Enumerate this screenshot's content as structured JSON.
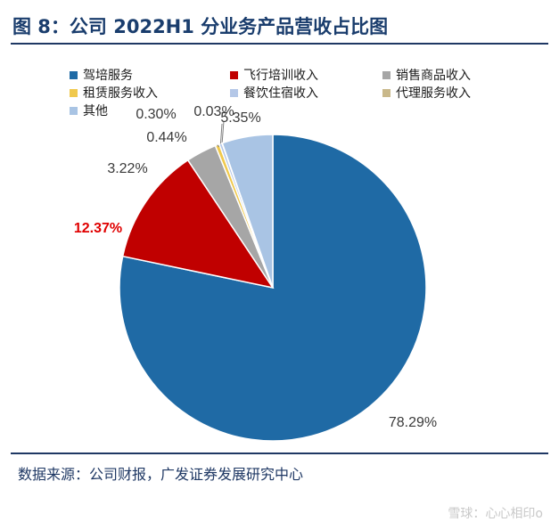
{
  "header": {
    "title": "图 8：公司 2022H1 分业务产品营收占比图"
  },
  "footer": {
    "source": "数据来源：公司财报，广发证券发展研究中心",
    "watermark": "雪球：心心相印o"
  },
  "chart_data": {
    "type": "pie",
    "title": "",
    "slices": [
      {
        "name": "驾培服务",
        "value": 78.29,
        "label": "78.29%",
        "color": "#1f6aa5"
      },
      {
        "name": "飞行培训收入",
        "value": 12.37,
        "label": "12.37%",
        "color": "#c00000",
        "highlight": true
      },
      {
        "name": "销售商品收入",
        "value": 3.22,
        "label": "3.22%",
        "color": "#a6a6a6"
      },
      {
        "name": "租赁服务收入",
        "value": 0.44,
        "label": "0.44%",
        "color": "#f0c94d"
      },
      {
        "name": "餐饮住宿收入",
        "value": 0.3,
        "label": "0.30%",
        "color": "#b4c7e7"
      },
      {
        "name": "代理服务收入",
        "value": 0.03,
        "label": "0.03%",
        "color": "#c9b88a"
      },
      {
        "name": "其他",
        "value": 5.35,
        "label": "5.35%",
        "color": "#a9c4e4"
      }
    ],
    "legend": {
      "placement": "top",
      "order": [
        "驾培服务",
        "飞行培训收入",
        "销售商品收入",
        "租赁服务收入",
        "餐饮住宿收入",
        "代理服务收入",
        "其他"
      ]
    }
  }
}
